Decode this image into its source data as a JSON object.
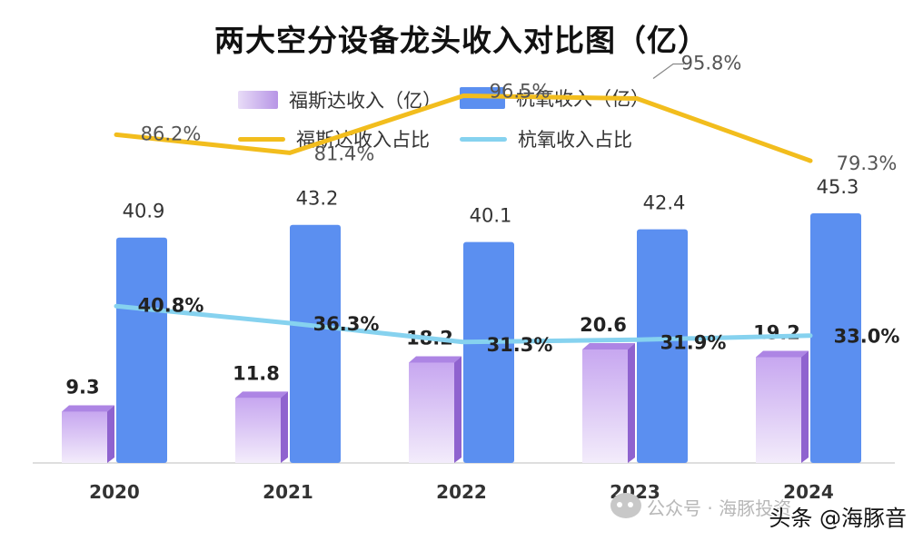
{
  "title": "两大空分设备龙头收入对比图（亿）",
  "legend": {
    "fusheng_revenue": "福斯达收入（亿）",
    "hangyang_revenue": "杭氧收入（亿）",
    "fusheng_ratio": "福斯达收入占比",
    "hangyang_ratio": "杭氧收入占比"
  },
  "watermark": {
    "channel": "公众号 · 海豚投资",
    "brand": "头条 @海豚音"
  },
  "colors": {
    "hangyang_bar": "#5b8ff0",
    "fusheng_bar_light": "#efe6fa",
    "fusheng_bar_dark": "#b38ce6",
    "fusheng_line": "#f2bd1d",
    "hangyang_line": "#86d2ef"
  },
  "chart_data": {
    "type": "bar",
    "categories": [
      "2020",
      "2021",
      "2022",
      "2023",
      "2024"
    ],
    "series": [
      {
        "name": "福斯达收入（亿）",
        "type": "bar",
        "values": [
          9.3,
          11.8,
          18.2,
          20.6,
          19.2
        ],
        "labels": [
          "9.3",
          "11.8",
          "18.2",
          "20.6",
          "19.2"
        ]
      },
      {
        "name": "杭氧收入（亿）",
        "type": "bar",
        "values": [
          40.9,
          43.2,
          40.1,
          42.4,
          45.3
        ],
        "labels": [
          "40.9",
          "43.2",
          "40.1",
          "42.4",
          "45.3"
        ]
      },
      {
        "name": "福斯达收入占比",
        "type": "line",
        "values": [
          86.2,
          81.4,
          96.5,
          95.8,
          79.3
        ],
        "labels": [
          "86.2%",
          "81.4%",
          "96.5%",
          "95.8%",
          "79.3%"
        ]
      },
      {
        "name": "杭氧收入占比",
        "type": "line",
        "values": [
          40.8,
          36.3,
          31.3,
          31.9,
          33.0
        ],
        "labels": [
          "40.8%",
          "36.3%",
          "31.3%",
          "31.9%",
          "33.0%"
        ]
      }
    ],
    "xlabel": "",
    "ylabel": "",
    "ylim": [
      0,
      50
    ],
    "ratio_ylim": [
      0,
      100
    ],
    "grid": false,
    "legend_position": "top"
  }
}
